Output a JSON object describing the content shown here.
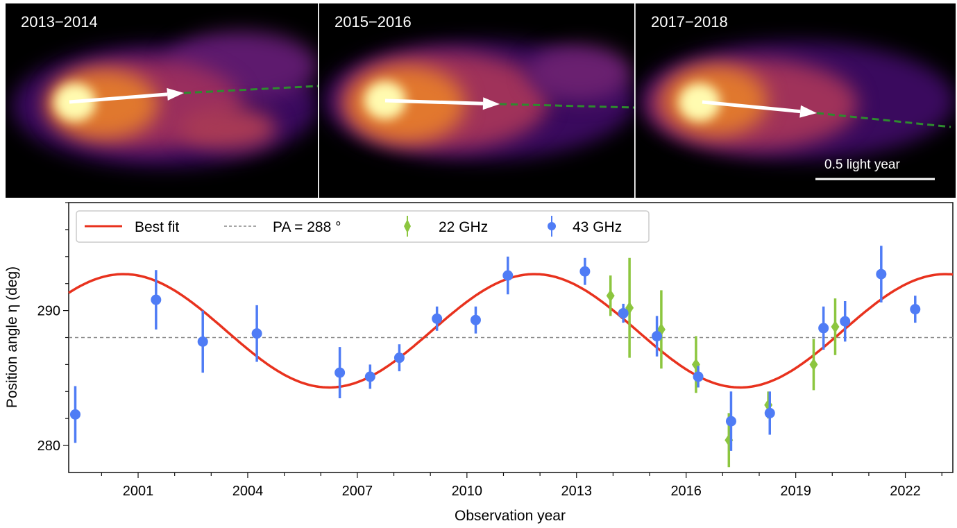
{
  "panels": [
    {
      "label": "2013−2014"
    },
    {
      "label": "2015−2016"
    },
    {
      "label": "2017−2018"
    }
  ],
  "scale_bar": {
    "label": "0.5 light year"
  },
  "colors": {
    "fit": "#e8321e",
    "pa": "#888888",
    "ghz22": "#8cc63f",
    "ghz43": "#4f7cf5",
    "arrow": "#ffffff",
    "jet_direction": "#2e8b2e"
  },
  "chart_data": {
    "type": "scatter",
    "xlabel": "Observation year",
    "ylabel": "Position angle η (deg)",
    "xlim": [
      1999.1,
      2023.3
    ],
    "ylim": [
      278,
      298
    ],
    "xticks": [
      2001,
      2004,
      2007,
      2010,
      2013,
      2016,
      2019,
      2022
    ],
    "yticks": [
      280,
      290
    ],
    "grid": false,
    "legend_position": "top",
    "legend": [
      "Best fit",
      "PA = 288 °",
      "22 GHz",
      "43 GHz"
    ],
    "best_fit": {
      "name": "Best fit",
      "form": "sinusoid",
      "mean": 288.5,
      "amplitude": 4.2,
      "period_years": 11.25,
      "peak_year": 2000.6
    },
    "reference_line": {
      "name": "PA = 288 °",
      "value": 288
    },
    "series": [
      {
        "name": "22 GHz",
        "marker": "diamond",
        "x": [
          2013.93,
          2014.45,
          2015.32,
          2016.27,
          2017.17,
          2018.25,
          2019.49,
          2020.08
        ],
        "y": [
          291.1,
          290.2,
          288.6,
          286.0,
          280.4,
          283.0,
          286.0,
          288.8
        ],
        "err": [
          1.5,
          3.7,
          2.9,
          2.1,
          2.0,
          1.0,
          1.9,
          2.1
        ]
      },
      {
        "name": "43 GHz",
        "marker": "circle",
        "x": [
          1999.28,
          2001.49,
          2002.77,
          2004.25,
          2006.52,
          2007.35,
          2008.15,
          2009.18,
          2010.24,
          2011.12,
          2013.23,
          2014.28,
          2015.2,
          2016.33,
          2017.23,
          2018.29,
          2019.76,
          2020.35,
          2021.34,
          2022.27
        ],
        "y": [
          282.3,
          290.8,
          287.7,
          288.3,
          285.4,
          285.1,
          286.5,
          289.4,
          289.3,
          292.6,
          292.9,
          289.8,
          288.1,
          285.1,
          281.8,
          282.4,
          288.7,
          289.2,
          292.7,
          290.1
        ],
        "err": [
          2.1,
          2.2,
          2.3,
          2.1,
          1.9,
          0.9,
          1.0,
          0.9,
          1.0,
          1.4,
          1.0,
          0.7,
          1.5,
          0.8,
          2.2,
          1.6,
          1.6,
          1.5,
          2.1,
          1.0
        ]
      }
    ]
  }
}
